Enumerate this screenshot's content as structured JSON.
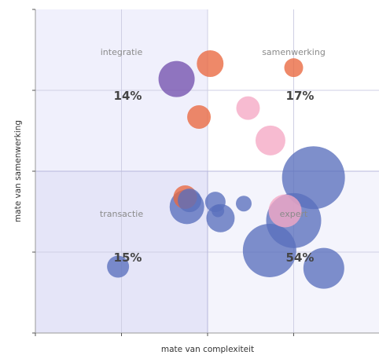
{
  "chart_data": {
    "type": "scatter",
    "title": "",
    "xlabel": "mate van complexiteit",
    "ylabel": "mate van samenwerking",
    "xlim": [
      0,
      4
    ],
    "ylim": [
      0,
      4
    ],
    "grid": true,
    "quadrants": [
      {
        "name": "integratie",
        "share": "14%",
        "x_range": [
          0,
          2
        ],
        "y_range": [
          2,
          4
        ],
        "fill": "#f0f0fc"
      },
      {
        "name": "samenwerking",
        "share": "17%",
        "x_range": [
          2,
          4
        ],
        "y_range": [
          2,
          4
        ],
        "fill": "#ffffff"
      },
      {
        "name": "transactie",
        "share": "15%",
        "x_range": [
          0,
          2
        ],
        "y_range": [
          0,
          2
        ],
        "fill": "#e5e5f8"
      },
      {
        "name": "expert",
        "share": "54%",
        "x_range": [
          2,
          4
        ],
        "y_range": [
          0,
          2
        ],
        "fill": "#f4f4fc"
      }
    ],
    "series": [
      {
        "color": "#7351ad",
        "points": [
          {
            "x": 1.64,
            "y": 3.14,
            "size": 23
          }
        ]
      },
      {
        "color": "#e9683f",
        "points": [
          {
            "x": 2.03,
            "y": 3.33,
            "size": 17
          },
          {
            "x": 3.0,
            "y": 3.28,
            "size": 12
          },
          {
            "x": 1.9,
            "y": 2.67,
            "size": 15
          },
          {
            "x": 1.74,
            "y": 1.68,
            "size": 15
          }
        ]
      },
      {
        "color": "#f5a8c4",
        "points": [
          {
            "x": 2.47,
            "y": 2.78,
            "size": 15
          },
          {
            "x": 2.73,
            "y": 2.38,
            "size": 19
          },
          {
            "x": 2.9,
            "y": 1.51,
            "size": 21
          }
        ]
      },
      {
        "color": "#5a70bd",
        "points": [
          {
            "x": 3.23,
            "y": 1.92,
            "size": 40
          },
          {
            "x": 1.76,
            "y": 1.56,
            "size": 22
          },
          {
            "x": 1.79,
            "y": 1.64,
            "size": 15
          },
          {
            "x": 2.09,
            "y": 1.62,
            "size": 13
          },
          {
            "x": 2.15,
            "y": 1.42,
            "size": 18
          },
          {
            "x": 2.12,
            "y": 1.51,
            "size": 8
          },
          {
            "x": 2.42,
            "y": 1.6,
            "size": 10
          },
          {
            "x": 3.0,
            "y": 1.39,
            "size": 35
          },
          {
            "x": 2.72,
            "y": 1.02,
            "size": 34
          },
          {
            "x": 3.35,
            "y": 0.8,
            "size": 26
          },
          {
            "x": 0.96,
            "y": 0.82,
            "size": 14
          }
        ]
      }
    ]
  }
}
